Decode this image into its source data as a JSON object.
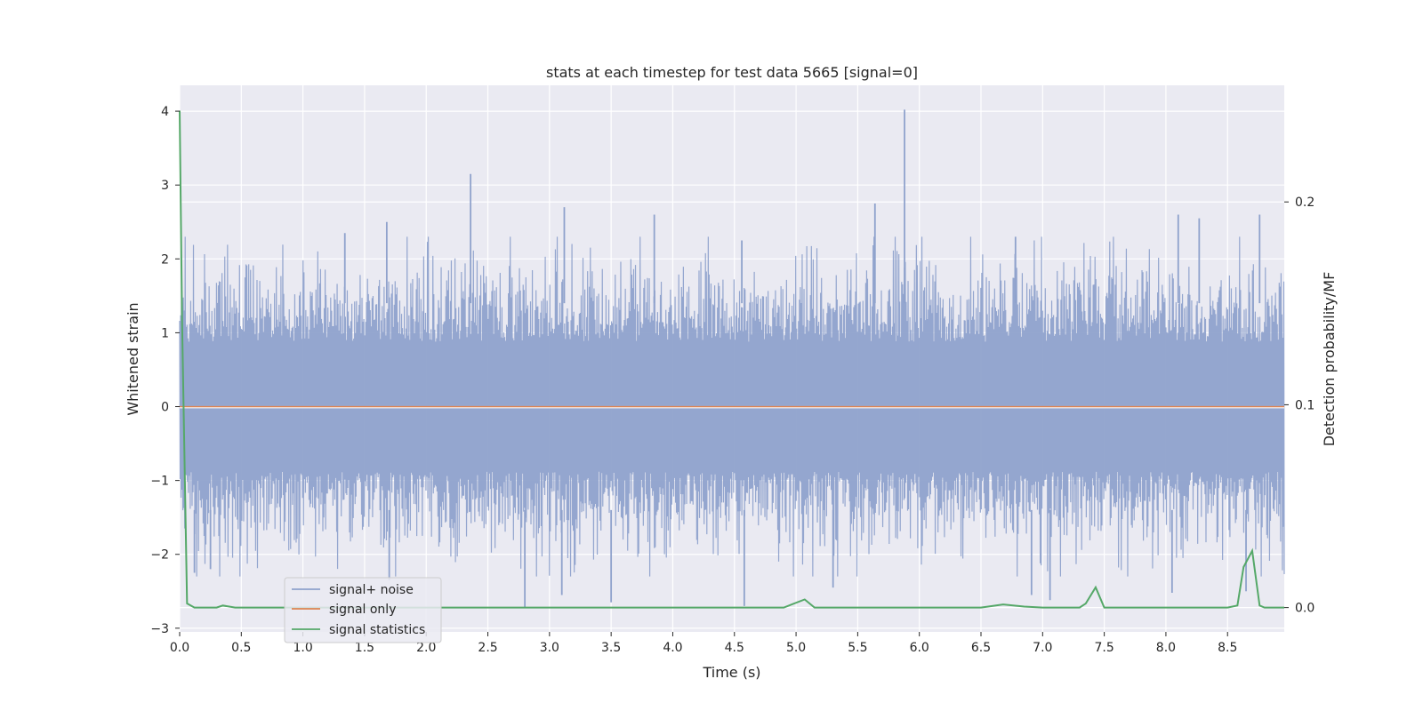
{
  "chart_data": {
    "type": "line",
    "title": "stats at each timestep for test data 5665 [signal=0]",
    "xlabel": "Time (s)",
    "ylabel": "Whitened strain",
    "y2label": "Detection probability/MF",
    "xlim": [
      0.0,
      8.96
    ],
    "ylim": [
      -3.05,
      4.35
    ],
    "y2lim": [
      -0.012,
      0.2575
    ],
    "xticks": [
      0.0,
      0.5,
      1.0,
      1.5,
      2.0,
      2.5,
      3.0,
      3.5,
      4.0,
      4.5,
      5.0,
      5.5,
      6.0,
      6.5,
      7.0,
      7.5,
      8.0,
      8.5
    ],
    "xtick_labels": [
      "0.0",
      "0.5",
      "1.0",
      "1.5",
      "2.0",
      "2.5",
      "3.0",
      "3.5",
      "4.0",
      "4.5",
      "5.0",
      "5.5",
      "6.0",
      "6.5",
      "7.0",
      "7.5",
      "8.0",
      "8.5"
    ],
    "yticks": [
      -3,
      -2,
      -1,
      0,
      1,
      2,
      3,
      4
    ],
    "ytick_labels": [
      "−3",
      "−2",
      "−1",
      "0",
      "1",
      "2",
      "3",
      "4"
    ],
    "y2ticks": [
      0.0,
      0.1,
      0.2
    ],
    "y2tick_labels": [
      "0.0",
      "0.1",
      "0.2"
    ],
    "grid": true,
    "legend_position": "lower-left",
    "series": [
      {
        "name": "signal+ noise",
        "axis": "left",
        "color": "#8fa2cc",
        "dense_noise": {
          "x_range": [
            0.0,
            8.96
          ],
          "typical_high": 1.6,
          "typical_low": -1.6
        },
        "peaks": [
          {
            "x": 2.36,
            "y": 3.15
          },
          {
            "x": 3.12,
            "y": 2.7
          },
          {
            "x": 3.85,
            "y": 2.6
          },
          {
            "x": 5.64,
            "y": 2.75
          },
          {
            "x": 5.88,
            "y": 4.02
          },
          {
            "x": 1.68,
            "y": 2.5
          },
          {
            "x": 1.34,
            "y": 2.35
          },
          {
            "x": 8.1,
            "y": 2.6
          },
          {
            "x": 8.76,
            "y": 2.6
          },
          {
            "x": 8.27,
            "y": 2.55
          },
          {
            "x": 4.56,
            "y": 2.25
          },
          {
            "x": 6.78,
            "y": 2.3
          }
        ],
        "troughs": [
          {
            "x": 2.8,
            "y": -2.72
          },
          {
            "x": 4.58,
            "y": -2.7
          },
          {
            "x": 3.5,
            "y": -2.65
          },
          {
            "x": 3.1,
            "y": -2.55
          },
          {
            "x": 0.12,
            "y": -2.25
          },
          {
            "x": 0.25,
            "y": -2.2
          },
          {
            "x": 7.06,
            "y": -2.62
          },
          {
            "x": 6.91,
            "y": -2.55
          },
          {
            "x": 8.05,
            "y": -2.52
          },
          {
            "x": 8.65,
            "y": -2.5
          },
          {
            "x": 5.3,
            "y": -2.45
          },
          {
            "x": 1.7,
            "y": -2.35
          }
        ]
      },
      {
        "name": "signal only",
        "axis": "left",
        "color": "#dd8452",
        "x": [
          0.0,
          8.96
        ],
        "y": [
          0.0,
          0.0
        ]
      },
      {
        "name": "signal statistics",
        "axis": "right",
        "color": "#55a868",
        "x": [
          0.0,
          0.02,
          0.06,
          0.12,
          0.2,
          0.3,
          0.35,
          0.45,
          0.6,
          1.0,
          2.0,
          3.0,
          4.0,
          4.9,
          5.07,
          5.15,
          5.25,
          6.5,
          6.68,
          6.85,
          7.0,
          7.3,
          7.35,
          7.43,
          7.5,
          8.0,
          8.5,
          8.58,
          8.63,
          8.7,
          8.76,
          8.8,
          8.96
        ],
        "y": [
          0.245,
          0.14,
          0.002,
          0.0,
          0.0,
          0.0,
          0.001,
          0.0,
          0.0,
          0.0,
          0.0,
          0.0,
          0.0,
          0.0,
          0.004,
          0.0,
          0.0,
          0.0,
          0.0015,
          0.0005,
          0.0,
          0.0,
          0.002,
          0.01,
          0.0,
          0.0,
          0.0,
          0.001,
          0.02,
          0.028,
          0.001,
          0.0,
          0.0
        ]
      }
    ]
  }
}
